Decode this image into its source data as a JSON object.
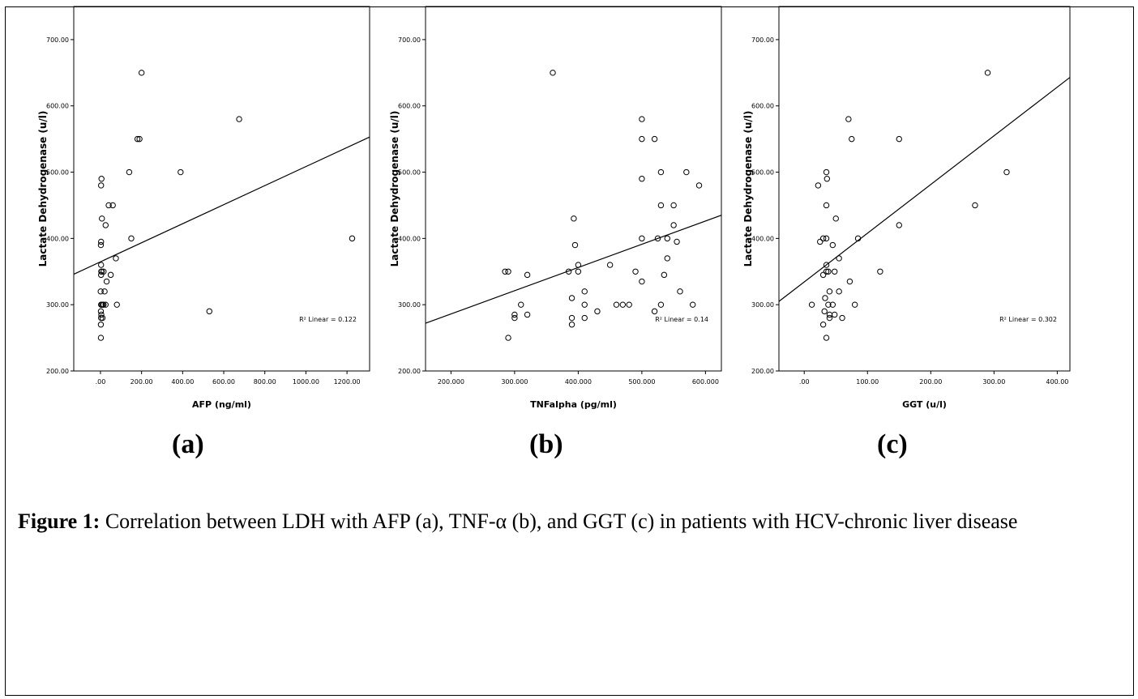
{
  "panels": [
    {
      "label": "(a)",
      "chart_data": {
        "type": "scatter",
        "xlabel": "AFP (ng/ml)",
        "ylabel": "Lactate Dehydrogenase (u/l)",
        "xlim": [
          -130,
          1310
        ],
        "ylim": [
          200,
          750
        ],
        "xticks": [
          0,
          200,
          400,
          600,
          800,
          1000,
          1200
        ],
        "xtick_labels": [
          ".00",
          "200.00",
          "400.00",
          "600.00",
          "800.00",
          "1000.00",
          "1200.00"
        ],
        "yticks": [
          200,
          300,
          400,
          500,
          600,
          700
        ],
        "ytick_labels": [
          "200.00",
          "300.00",
          "400.00",
          "500.00",
          "600.00",
          "700.00"
        ],
        "points": [
          [
            2,
            250
          ],
          [
            2,
            270
          ],
          [
            3,
            280
          ],
          [
            4,
            285
          ],
          [
            2,
            290
          ],
          [
            3,
            300
          ],
          [
            5,
            300
          ],
          [
            1,
            320
          ],
          [
            3,
            345
          ],
          [
            4,
            350
          ],
          [
            6,
            350
          ],
          [
            3,
            360
          ],
          [
            2,
            390
          ],
          [
            3,
            395
          ],
          [
            3,
            480
          ],
          [
            5,
            490
          ],
          [
            7,
            430
          ],
          [
            10,
            280
          ],
          [
            10,
            300
          ],
          [
            15,
            300
          ],
          [
            15,
            350
          ],
          [
            20,
            320
          ],
          [
            25,
            300
          ],
          [
            25,
            420
          ],
          [
            30,
            335
          ],
          [
            40,
            450
          ],
          [
            50,
            345
          ],
          [
            60,
            450
          ],
          [
            75,
            370
          ],
          [
            80,
            300
          ],
          [
            140,
            500
          ],
          [
            150,
            400
          ],
          [
            180,
            550
          ],
          [
            190,
            550
          ],
          [
            200,
            650
          ],
          [
            390,
            500
          ],
          [
            530,
            290
          ],
          [
            675,
            580
          ],
          [
            1225,
            400
          ]
        ],
        "fit": {
          "x": [
            -130,
            1310
          ],
          "y": [
            346,
            553
          ]
        },
        "annotation": "R² Linear = 0.122"
      }
    },
    {
      "label": "(b)",
      "chart_data": {
        "type": "scatter",
        "xlabel": "TNFalpha (pg/ml)",
        "ylabel": "Lactate Dehydrogenase (u/l)",
        "xlim": [
          160,
          625
        ],
        "ylim": [
          200,
          750
        ],
        "xticks": [
          200,
          300,
          400,
          500,
          600
        ],
        "xtick_labels": [
          "200.000",
          "300.000",
          "400.000",
          "500.000",
          "600.000"
        ],
        "yticks": [
          200,
          300,
          400,
          500,
          600,
          700
        ],
        "ytick_labels": [
          "200.00",
          "300.00",
          "400.00",
          "500.00",
          "600.00",
          "700.00"
        ],
        "points": [
          [
            290,
            250
          ],
          [
            285,
            350
          ],
          [
            290,
            350
          ],
          [
            300,
            280
          ],
          [
            300,
            285
          ],
          [
            310,
            300
          ],
          [
            320,
            285
          ],
          [
            320,
            345
          ],
          [
            360,
            650
          ],
          [
            385,
            350
          ],
          [
            390,
            270
          ],
          [
            390,
            280
          ],
          [
            390,
            310
          ],
          [
            393,
            430
          ],
          [
            395,
            390
          ],
          [
            400,
            350
          ],
          [
            400,
            360
          ],
          [
            410,
            280
          ],
          [
            410,
            300
          ],
          [
            410,
            320
          ],
          [
            430,
            290
          ],
          [
            450,
            360
          ],
          [
            460,
            300
          ],
          [
            470,
            300
          ],
          [
            480,
            300
          ],
          [
            490,
            350
          ],
          [
            500,
            335
          ],
          [
            500,
            400
          ],
          [
            500,
            490
          ],
          [
            500,
            550
          ],
          [
            500,
            580
          ],
          [
            520,
            290
          ],
          [
            520,
            550
          ],
          [
            525,
            400
          ],
          [
            530,
            300
          ],
          [
            530,
            450
          ],
          [
            530,
            500
          ],
          [
            535,
            345
          ],
          [
            540,
            370
          ],
          [
            540,
            400
          ],
          [
            550,
            420
          ],
          [
            550,
            450
          ],
          [
            555,
            395
          ],
          [
            560,
            320
          ],
          [
            570,
            500
          ],
          [
            580,
            300
          ],
          [
            590,
            480
          ]
        ],
        "fit": {
          "x": [
            160,
            625
          ],
          "y": [
            272,
            435
          ]
        },
        "annotation": "R² Linear = 0.14"
      }
    },
    {
      "label": "(c)",
      "chart_data": {
        "type": "scatter",
        "xlabel": "GGT (u/l)",
        "ylabel": "Lactate Dehydrogenase (u/l)",
        "xlim": [
          -40,
          420
        ],
        "ylim": [
          200,
          750
        ],
        "xticks": [
          0,
          100,
          200,
          300,
          400
        ],
        "xtick_labels": [
          ".00",
          "100.00",
          "200.00",
          "300.00",
          "400.00"
        ],
        "yticks": [
          200,
          300,
          400,
          500,
          600,
          700
        ],
        "ytick_labels": [
          "200.00",
          "300.00",
          "400.00",
          "500.00",
          "600.00",
          "700.00"
        ],
        "points": [
          [
            12,
            300
          ],
          [
            22,
            480
          ],
          [
            25,
            395
          ],
          [
            30,
            270
          ],
          [
            30,
            345
          ],
          [
            30,
            400
          ],
          [
            32,
            290
          ],
          [
            33,
            310
          ],
          [
            35,
            250
          ],
          [
            35,
            350
          ],
          [
            35,
            360
          ],
          [
            35,
            400
          ],
          [
            35,
            450
          ],
          [
            35,
            500
          ],
          [
            36,
            490
          ],
          [
            38,
            300
          ],
          [
            38,
            350
          ],
          [
            40,
            280
          ],
          [
            40,
            285
          ],
          [
            40,
            320
          ],
          [
            45,
            300
          ],
          [
            45,
            390
          ],
          [
            48,
            285
          ],
          [
            48,
            350
          ],
          [
            50,
            430
          ],
          [
            55,
            320
          ],
          [
            55,
            370
          ],
          [
            60,
            280
          ],
          [
            70,
            580
          ],
          [
            72,
            335
          ],
          [
            75,
            550
          ],
          [
            80,
            300
          ],
          [
            85,
            400
          ],
          [
            120,
            350
          ],
          [
            150,
            420
          ],
          [
            150,
            550
          ],
          [
            270,
            450
          ],
          [
            290,
            650
          ],
          [
            320,
            500
          ]
        ],
        "fit": {
          "x": [
            -40,
            420
          ],
          "y": [
            305,
            643
          ]
        },
        "annotation": "R² Linear = 0.302"
      }
    }
  ],
  "caption": {
    "prefix": "Figure 1:",
    "text": " Correlation between LDH with AFP (a), TNF-α (b), and GGT (c) in patients with HCV-chronic liver disease"
  }
}
